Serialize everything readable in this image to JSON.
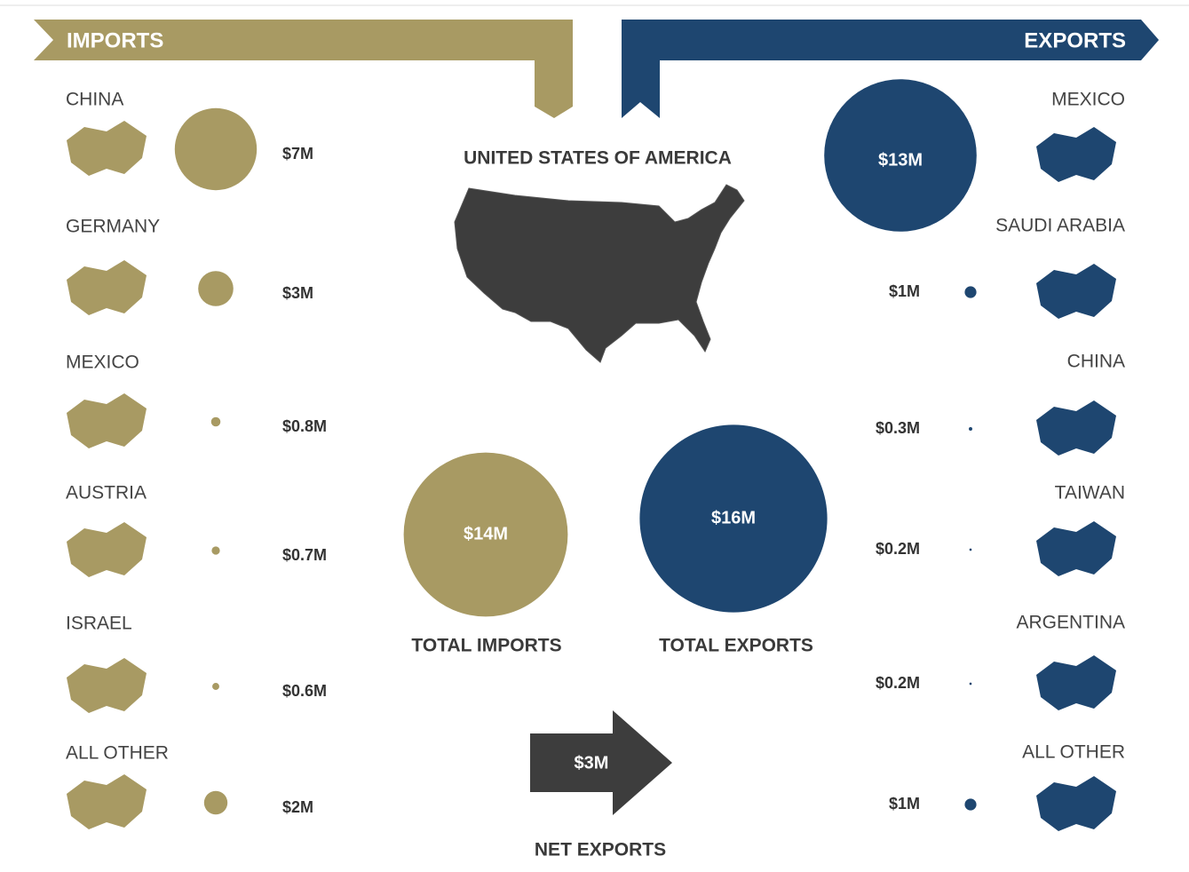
{
  "imports": {
    "title": "IMPORTS",
    "color": "#a89a63",
    "countries": [
      {
        "name": "CHINA",
        "value": 7,
        "value_label": "$7M"
      },
      {
        "name": "GERMANY",
        "value": 3,
        "value_label": "$3M"
      },
      {
        "name": "MEXICO",
        "value": 0.8,
        "value_label": "$0.8M"
      },
      {
        "name": "AUSTRIA",
        "value": 0.7,
        "value_label": "$0.7M"
      },
      {
        "name": "ISRAEL",
        "value": 0.6,
        "value_label": "$0.6M"
      },
      {
        "name": "ALL OTHER",
        "value": 2,
        "value_label": "$2M"
      }
    ]
  },
  "exports": {
    "title": "EXPORTS",
    "color": "#1e4670",
    "countries": [
      {
        "name": "MEXICO",
        "value": 13,
        "value_label": "$13M"
      },
      {
        "name": "SAUDI ARABIA",
        "value": 1,
        "value_label": "$1M"
      },
      {
        "name": "CHINA",
        "value": 0.3,
        "value_label": "$0.3M"
      },
      {
        "name": "TAIWAN",
        "value": 0.2,
        "value_label": "$0.2M"
      },
      {
        "name": "ARGENTINA",
        "value": 0.2,
        "value_label": "$0.2M"
      },
      {
        "name": "ALL OTHER",
        "value": 1,
        "value_label": "$1M"
      }
    ]
  },
  "center": {
    "title": "UNITED STATES OF AMERICA",
    "total_imports": {
      "label": "TOTAL IMPORTS",
      "value": 14,
      "value_label": "$14M"
    },
    "total_exports": {
      "label": "TOTAL EXPORTS",
      "value": 16,
      "value_label": "$16M"
    },
    "net_exports": {
      "label": "NET EXPORTS",
      "value": 3,
      "value_label": "$3M"
    }
  }
}
